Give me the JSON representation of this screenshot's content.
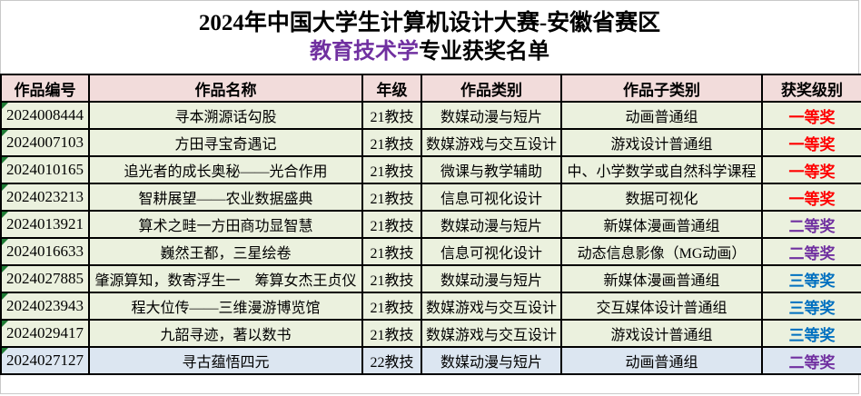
{
  "title": {
    "line1": "2024年中国大学生计算机设计大赛-安徽省赛区",
    "line2_highlight": "教育技术学",
    "line2_rest": "专业获奖名单"
  },
  "table": {
    "headers": [
      "作品编号",
      "作品名称",
      "年级",
      "作品类别",
      "作品子类别",
      "获奖级别"
    ],
    "rows": [
      {
        "id": "2024008444",
        "name": "寻本溯源话勾股",
        "grade": "21教技",
        "category": "数媒动漫与短片",
        "subcategory": "动画普通组",
        "award": "一等奖",
        "highlight": false
      },
      {
        "id": "2024007103",
        "name": "方田寻宝奇遇记",
        "grade": "21教技",
        "category": "数媒游戏与交互设计",
        "subcategory": "游戏设计普通组",
        "award": "一等奖",
        "highlight": false
      },
      {
        "id": "2024010165",
        "name": "追光者的成长奥秘——光合作用",
        "grade": "21教技",
        "category": "微课与教学辅助",
        "subcategory": "中、小学数学或自然科学课程",
        "award": "一等奖",
        "highlight": false
      },
      {
        "id": "2024023213",
        "name": "智耕展望——农业数据盛典",
        "grade": "21教技",
        "category": "信息可视化设计",
        "subcategory": "数据可视化",
        "award": "一等奖",
        "highlight": false
      },
      {
        "id": "2024013921",
        "name": "算术之畦一方田商功显智慧",
        "grade": "21教技",
        "category": "数媒动漫与短片",
        "subcategory": "新媒体漫画普通组",
        "award": "二等奖",
        "highlight": false
      },
      {
        "id": "2024016633",
        "name": "巍然王都，三星绘卷",
        "grade": "21教技",
        "category": "信息可视化设计",
        "subcategory": "动态信息影像（MG动画）",
        "award": "二等奖",
        "highlight": false
      },
      {
        "id": "2024027885",
        "name": "肇源算知，数寄浮生一　筹算女杰王贞仪",
        "grade": "21教技",
        "category": "数媒动漫与短片",
        "subcategory": "新媒体漫画普通组",
        "award": "三等奖",
        "highlight": false
      },
      {
        "id": "2024023943",
        "name": "程大位传——三维漫游博览馆",
        "grade": "21教技",
        "category": "数媒游戏与交互设计",
        "subcategory": "交互媒体设计普通组",
        "award": "三等奖",
        "highlight": false
      },
      {
        "id": "2024029417",
        "name": "九韶寻迹，著以数书",
        "grade": "21教技",
        "category": "数媒游戏与交互设计",
        "subcategory": "游戏设计普通组",
        "award": "三等奖",
        "highlight": false
      },
      {
        "id": "2024027127",
        "name": "寻古蕴悟四元",
        "grade": "22教技",
        "category": "数媒动漫与短片",
        "subcategory": "动画普通组",
        "award": "二等奖",
        "highlight": true
      }
    ]
  },
  "colors": {
    "subtitle_highlight": "#7030A0",
    "header_bg": "#F2DCDB",
    "row_bg": "#EBF1DE",
    "highlight_row_bg": "#DCE6F1",
    "border": "#000000",
    "error_indicator": "#1E7B34",
    "award_colors": {
      "一等奖": "#FF0000",
      "二等奖": "#7030A0",
      "三等奖": "#0070C0"
    }
  }
}
